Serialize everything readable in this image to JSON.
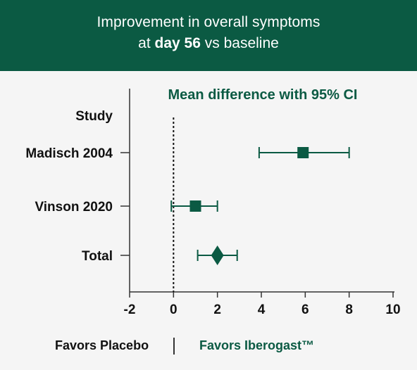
{
  "header": {
    "line1": "Improvement in overall symptoms",
    "line2_prefix": "at ",
    "line2_bold": "day 56",
    "line2_suffix": " vs baseline"
  },
  "colors": {
    "brand": "#0b5a43",
    "background": "#f5f5f5",
    "text": "#111111"
  },
  "chart_data": {
    "type": "forest",
    "title": "Mean difference with 95% CI",
    "row_header": "Study",
    "xlim": [
      -2,
      10
    ],
    "x_ticks": [
      "-2",
      "0",
      "2",
      "4",
      "6",
      "8",
      "10"
    ],
    "reference_line": 0,
    "studies": [
      {
        "label": "Madisch 2004",
        "estimate": 5.9,
        "ci_low": 3.9,
        "ci_high": 8.0,
        "marker": "square"
      },
      {
        "label": "Vinson 2020",
        "estimate": 1.0,
        "ci_low": -0.1,
        "ci_high": 2.0,
        "marker": "square"
      },
      {
        "label": "Total",
        "estimate": 2.0,
        "ci_low": 1.1,
        "ci_high": 2.9,
        "marker": "diamond"
      }
    ]
  },
  "footer": {
    "left": "Favors Placebo",
    "right": "Favors Iberogast™"
  }
}
